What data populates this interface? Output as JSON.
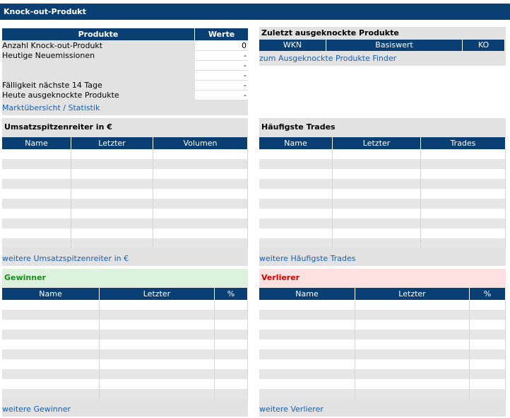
{
  "header": {
    "title": "Knock-out-Produkt"
  },
  "produkte": {
    "columns": [
      "Produkte",
      "Werte"
    ],
    "rows": [
      [
        "Anzahl Knock-out-Produkt",
        0
      ],
      [
        "Heutige Neuemissionen",
        "-"
      ],
      [
        null,
        "-"
      ],
      [
        null,
        "-"
      ],
      [
        "Fälligkeit nächste 14 Tage",
        "-"
      ],
      [
        "Heute ausgeknockte Produkte",
        "-"
      ]
    ],
    "link": "Marktübersicht / Statistik"
  },
  "zuletzt": {
    "title": "Zuletzt ausgeknockte Produkte",
    "columns": [
      "WKN",
      "Basiswert",
      "KO"
    ],
    "link": "zum Ausgeknockte Produkte Finder"
  },
  "umsatz": {
    "title": "Umsatzspitzenreiter in €",
    "columns": [
      "Name",
      "Letzter",
      "Volumen"
    ],
    "link": "weitere Umsatzspitzenreiter in €"
  },
  "trades": {
    "title": "Häufigste Trades",
    "columns": [
      "Name",
      "Letzter",
      "Trades"
    ],
    "link": "weitere Häufigste Trades"
  },
  "gewinner": {
    "title": "Gewinner",
    "columns": [
      "Name",
      "Letzter",
      "%"
    ],
    "link": "weitere Gewinner"
  },
  "verlierer": {
    "title": "Verlierer",
    "columns": [
      "Name",
      "Letzter",
      "%"
    ],
    "link": "weitere Verlierer"
  }
}
